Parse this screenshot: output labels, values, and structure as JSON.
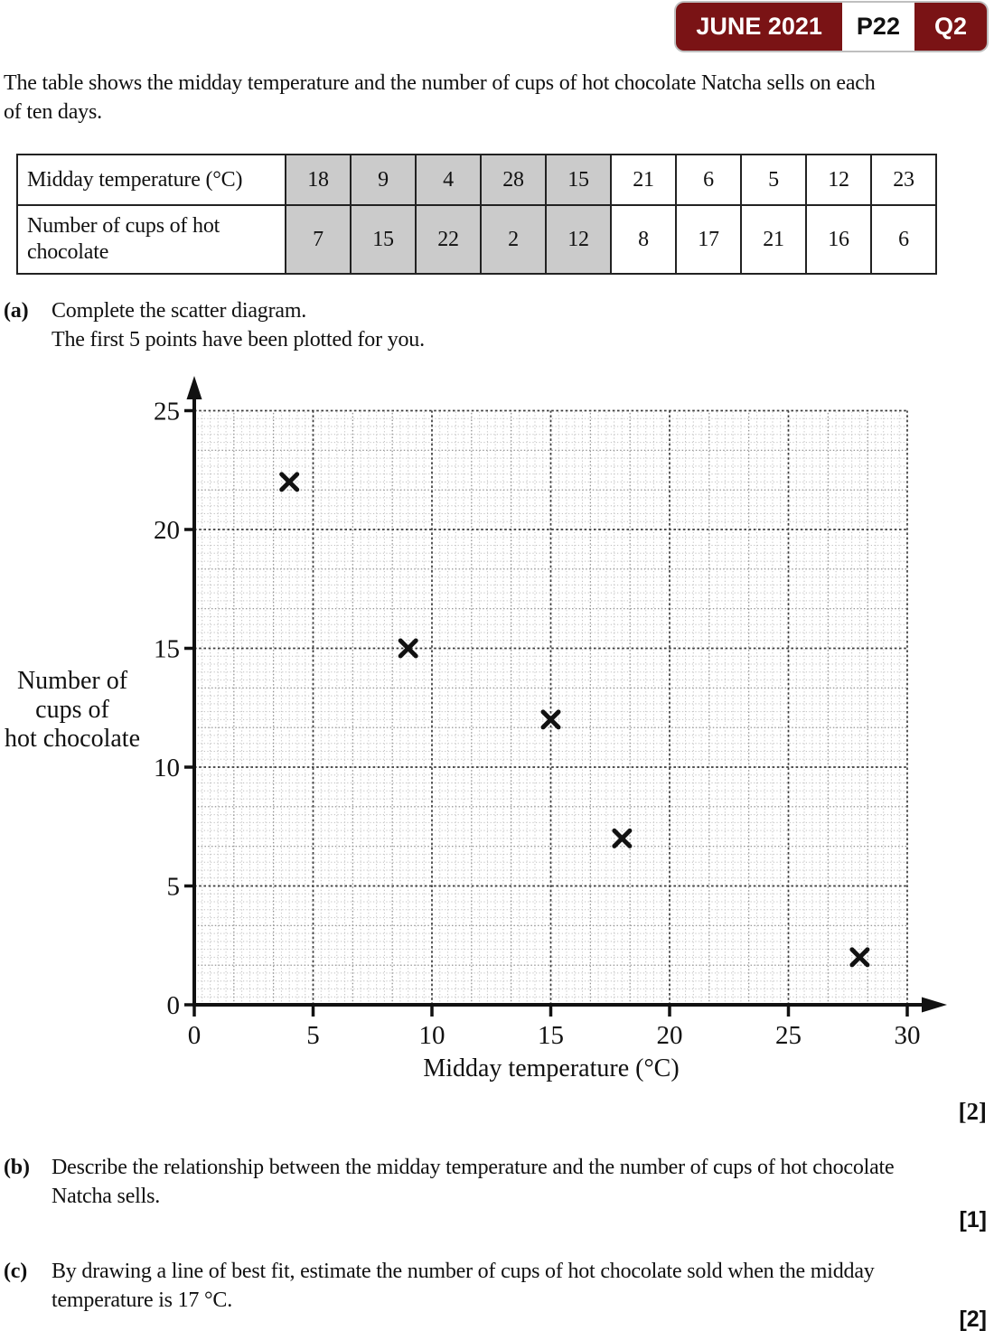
{
  "badge": {
    "session": "JUNE 2021",
    "paper": "P22",
    "question": "Q2"
  },
  "intro": {
    "lines": [
      "The table shows the midday temperature and the number of cups of hot chocolate Natcha sells on each",
      "of ten days."
    ]
  },
  "table": {
    "row1_header": "Midday temperature (°C)",
    "row2_header": "Number of cups of hot chocolate",
    "row1_values": [
      "18",
      "9",
      "4",
      "28",
      "15",
      "21",
      "6",
      "5",
      "12",
      "23"
    ],
    "row2_values": [
      "7",
      "15",
      "22",
      "2",
      "12",
      "8",
      "17",
      "21",
      "16",
      "6"
    ],
    "shaded_columns": 5
  },
  "part_a": {
    "label": "(a)",
    "lines": [
      "Complete the scatter diagram.",
      "The first 5 points have been plotted for you."
    ],
    "marks": "[2]"
  },
  "chart_data": {
    "type": "scatter",
    "title": "",
    "xlabel": "Midday temperature (°C)",
    "ylabel": "Number of cups of hot chocolate",
    "ylabel_lines": [
      "Number of",
      "cups of",
      "hot chocolate"
    ],
    "xlim": [
      0,
      30
    ],
    "ylim": [
      0,
      25
    ],
    "x_ticks": [
      0,
      5,
      10,
      15,
      20,
      25,
      30
    ],
    "y_ticks": [
      0,
      5,
      10,
      15,
      20,
      25
    ],
    "points": [
      [
        4,
        22
      ],
      [
        9,
        15
      ],
      [
        15,
        12
      ],
      [
        18,
        7
      ],
      [
        28,
        2
      ]
    ],
    "marker": "x",
    "grid": "fine dotted grid, darker dotted line every 5 units, legend none"
  },
  "part_b": {
    "label": "(b)",
    "lines": [
      "Describe the relationship between the midday temperature and the number of cups of hot chocolate",
      "Natcha sells."
    ],
    "marks": "[1]"
  },
  "part_c": {
    "label": "(c)",
    "lines": [
      "By drawing a line of best fit, estimate the number of cups of hot chocolate sold when the midday",
      "temperature is 17 °C."
    ],
    "marks": "[2]"
  },
  "colors": {
    "badge_bg": "#7a1315",
    "table_shade": "#cbcbcb",
    "ink": "#111111"
  }
}
